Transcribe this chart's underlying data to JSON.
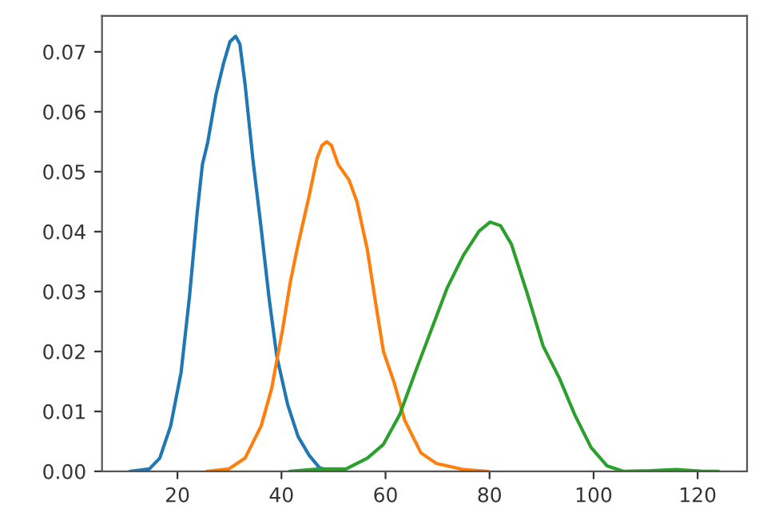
{
  "chart_data": {
    "type": "line",
    "xlim": [
      5.5,
      129.5
    ],
    "ylim": [
      0,
      0.076
    ],
    "xticks": [
      20,
      40,
      60,
      80,
      100,
      120
    ],
    "yticks": [
      {
        "value": 0,
        "label": "0.00"
      },
      0.01,
      0.02,
      0.03,
      0.04,
      0.05,
      0.06,
      0.07
    ],
    "grid": false,
    "marker": "none",
    "line_style": "solid",
    "series": [
      {
        "color": "#1f77b4",
        "x": [
          11.0,
          14.6,
          16.6,
          18.7,
          20.7,
          22.3,
          23.8,
          24.8,
          25.8,
          27.4,
          28.9,
          30.1,
          31.2,
          32.0,
          33.0,
          34.5,
          36.1,
          37.6,
          39.1,
          41.2,
          43.2,
          45.3,
          47.3,
          49.4
        ],
        "values": [
          0,
          0.0004,
          0.0022,
          0.0076,
          0.0165,
          0.029,
          0.0432,
          0.0512,
          0.0548,
          0.0628,
          0.0682,
          0.0717,
          0.0726,
          0.0713,
          0.0646,
          0.0521,
          0.0405,
          0.029,
          0.0192,
          0.0111,
          0.0058,
          0.0027,
          0.0006,
          0
        ]
      },
      {
        "color": "#ff7f0e",
        "x": [
          25.8,
          29.9,
          33.0,
          36.1,
          38.1,
          40.2,
          41.7,
          43.2,
          45.3,
          46.8,
          47.8,
          48.7,
          49.6,
          50.9,
          53.0,
          54.5,
          56.5,
          58.1,
          59.6,
          61.7,
          63.7,
          66.8,
          69.8,
          74.9,
          79.6
        ],
        "values": [
          0,
          0.0004,
          0.0022,
          0.0076,
          0.0138,
          0.0236,
          0.0316,
          0.0379,
          0.0459,
          0.0521,
          0.0544,
          0.055,
          0.0544,
          0.0512,
          0.0486,
          0.045,
          0.037,
          0.0281,
          0.02,
          0.0147,
          0.0085,
          0.0031,
          0.0013,
          0.0003,
          0
        ]
      },
      {
        "color": "#2ca02c",
        "x": [
          41.7,
          47.3,
          52.4,
          56.5,
          59.6,
          62.7,
          65.7,
          68.8,
          71.9,
          75.0,
          78.0,
          80.1,
          82.1,
          84.2,
          87.2,
          90.3,
          93.4,
          96.4,
          99.5,
          102.6,
          105.7,
          110.8,
          115.9,
          121.0,
          123.9
        ],
        "values": [
          0,
          0.0004,
          0.0004,
          0.0022,
          0.0045,
          0.0094,
          0.0165,
          0.0236,
          0.0307,
          0.0361,
          0.0401,
          0.0416,
          0.041,
          0.0379,
          0.0298,
          0.0209,
          0.0156,
          0.0094,
          0.004,
          0.0009,
          0,
          0.0001,
          0.0003,
          0,
          0
        ]
      }
    ]
  }
}
